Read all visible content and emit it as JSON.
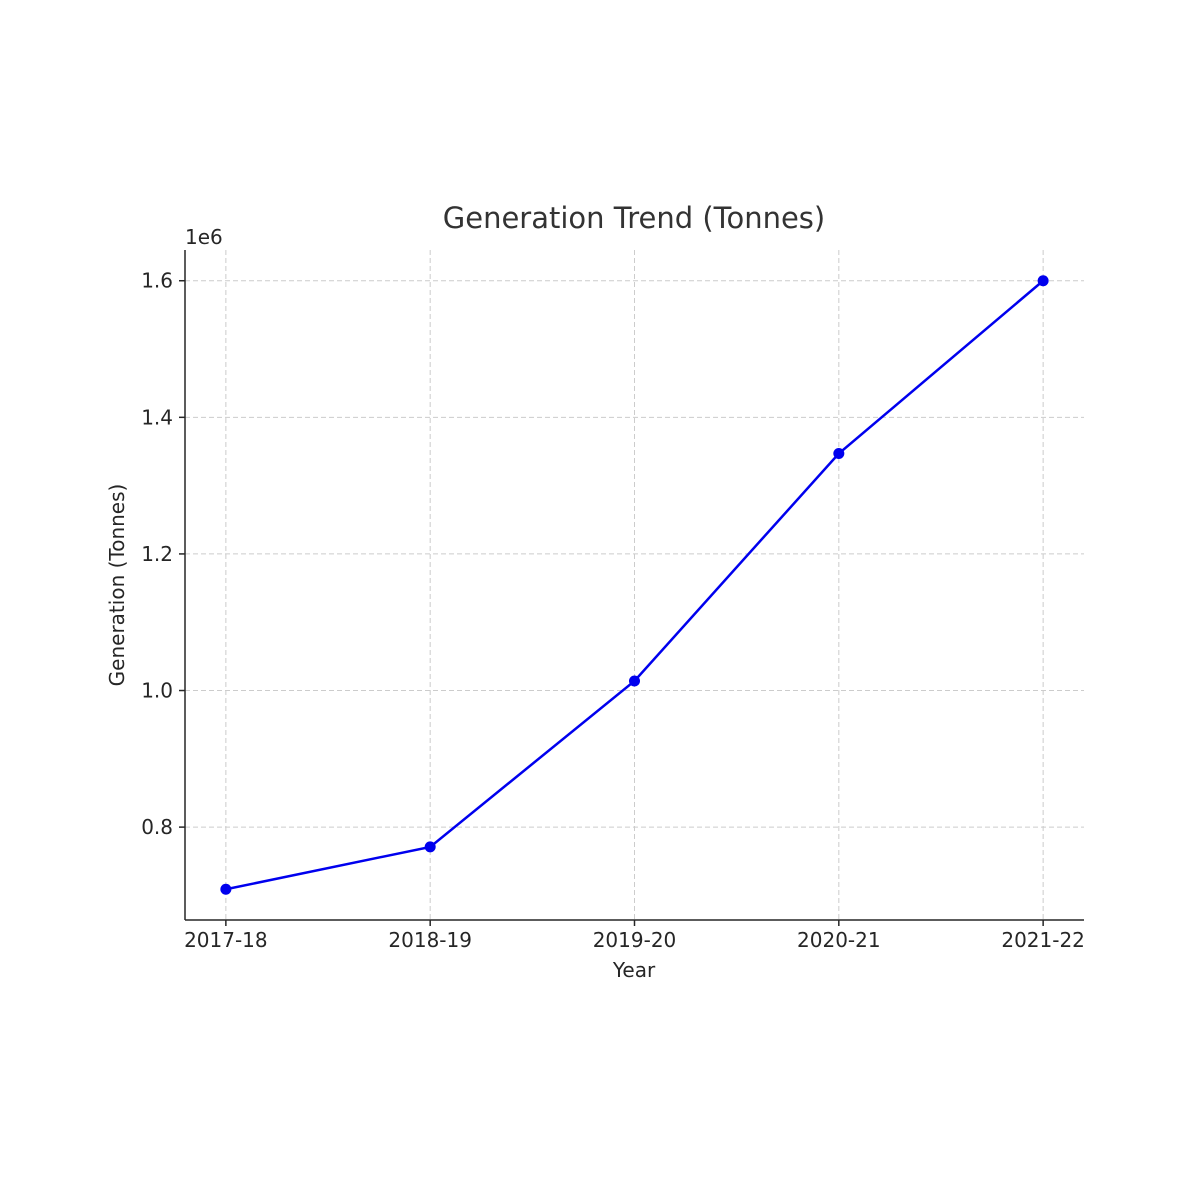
{
  "chart_data": {
    "type": "line",
    "title": "Generation Trend (Tonnes)",
    "xlabel": "Year",
    "ylabel": "Generation (Tonnes)",
    "y_offset_label": "1e6",
    "categories": [
      "2017-18",
      "2018-19",
      "2019-20",
      "2020-21",
      "2021-22"
    ],
    "series": [
      {
        "name": "Generation",
        "color": "#0000ee",
        "values": [
          0.709,
          0.771,
          1.014,
          1.347,
          1.6
        ]
      }
    ],
    "ylim": [
      0.664,
      1.645
    ],
    "yticks": [
      0.8,
      {
        "value": 1,
        "label": "1.0"
      },
      1.2,
      1.4,
      1.6
    ],
    "grid": true
  }
}
